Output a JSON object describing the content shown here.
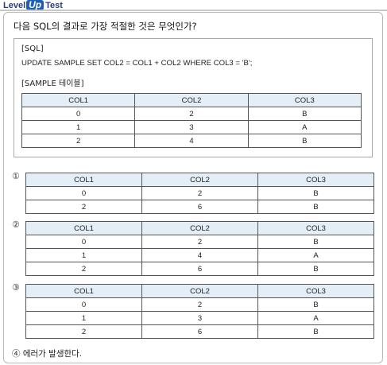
{
  "header": {
    "logo_level": "Level",
    "logo_up": "Up",
    "logo_test": "Test"
  },
  "question": {
    "text": "다음 SQL의 결과로 가장 적절한 것은 무엇인가?",
    "sql_tag": "[SQL]",
    "sql_statement": "UPDATE SAMPLE SET COL2 = COL1 + COL2 WHERE COL3 = 'B';",
    "table_tag": "[SAMPLE 테이블]",
    "table": {
      "columns": [
        "COL1",
        "COL2",
        "COL3"
      ],
      "rows": [
        [
          "0",
          "2",
          "B"
        ],
        [
          "1",
          "3",
          "A"
        ],
        [
          "2",
          "4",
          "B"
        ]
      ]
    }
  },
  "options": [
    {
      "marker": "①",
      "columns": [
        "COL1",
        "COL2",
        "COL3"
      ],
      "rows": [
        [
          "0",
          "2",
          "B"
        ],
        [
          "2",
          "6",
          "B"
        ]
      ]
    },
    {
      "marker": "②",
      "columns": [
        "COL1",
        "COL2",
        "COL3"
      ],
      "rows": [
        [
          "0",
          "2",
          "B"
        ],
        [
          "1",
          "4",
          "A"
        ],
        [
          "2",
          "6",
          "B"
        ]
      ]
    },
    {
      "marker": "③",
      "columns": [
        "COL1",
        "COL2",
        "COL3"
      ],
      "rows": [
        [
          "0",
          "2",
          "B"
        ],
        [
          "1",
          "3",
          "A"
        ],
        [
          "2",
          "6",
          "B"
        ]
      ]
    },
    {
      "marker": "④",
      "text": "에러가 발생한다."
    }
  ]
}
